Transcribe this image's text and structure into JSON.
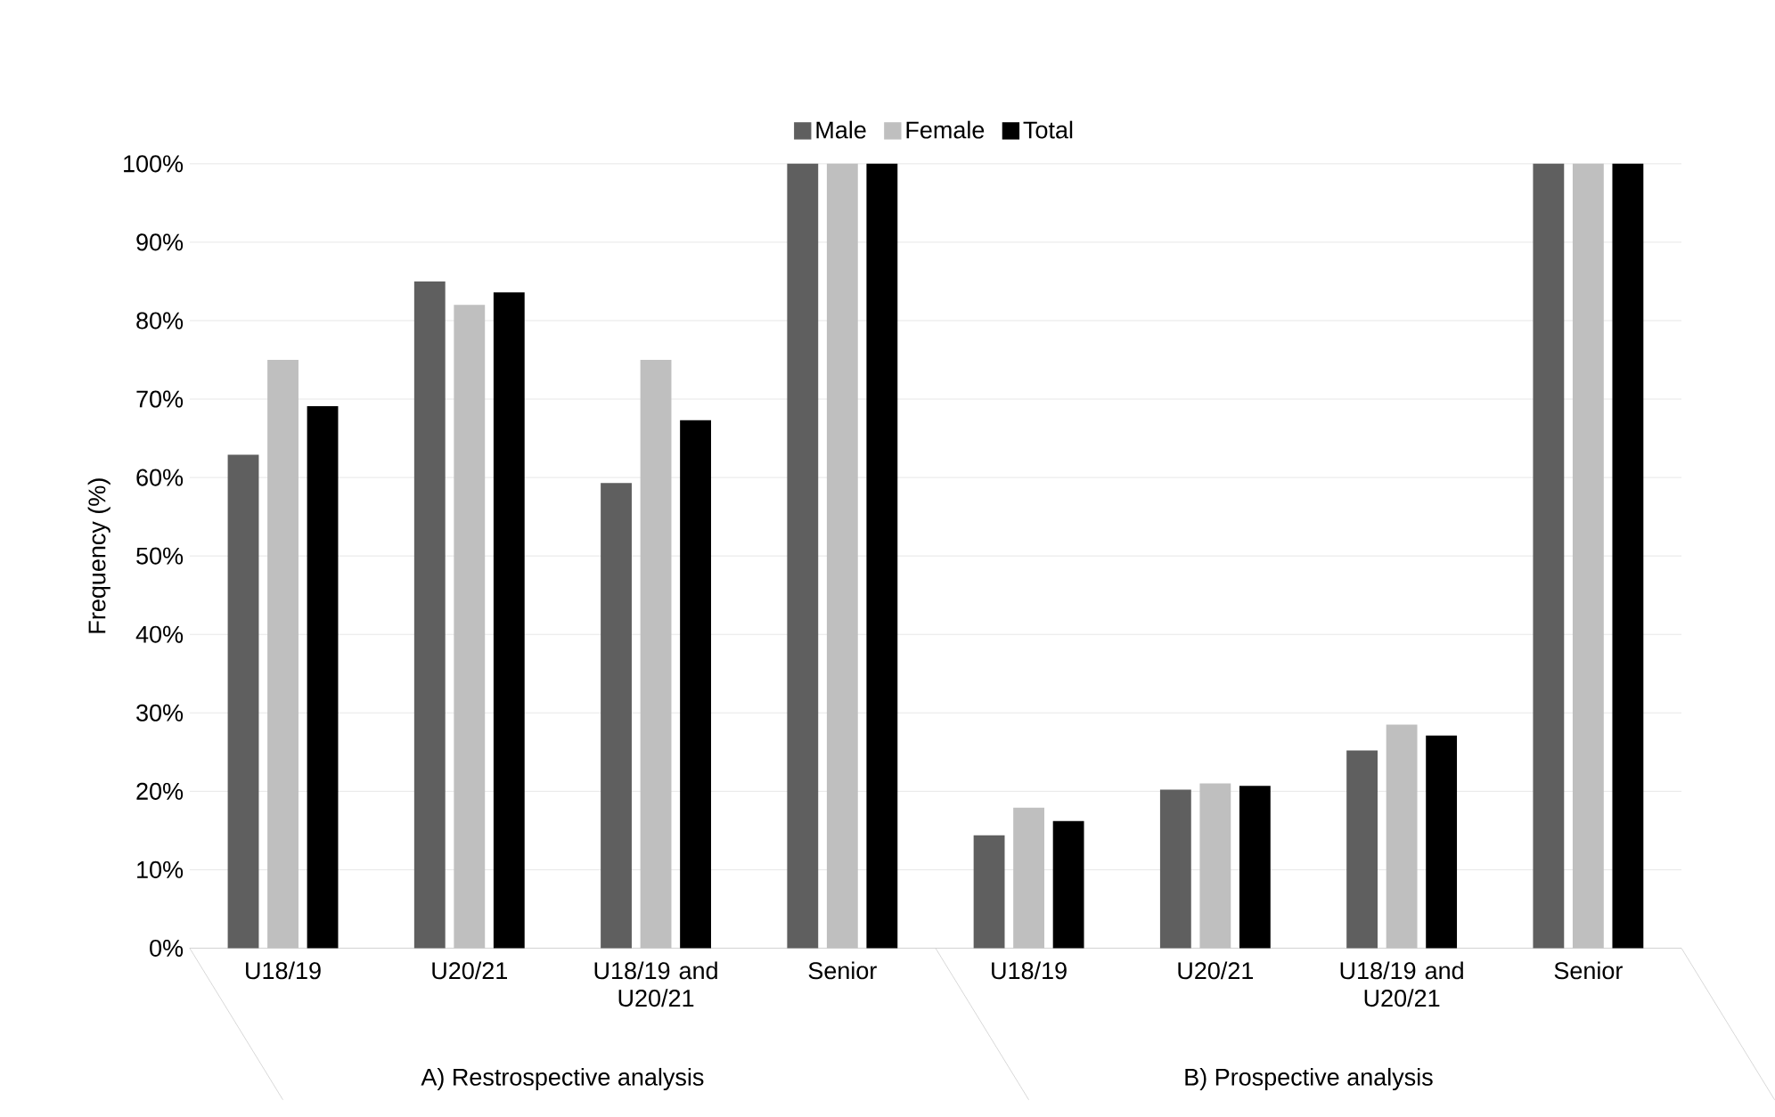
{
  "chart_data": {
    "type": "bar",
    "ylabel": "Frequency (%)",
    "categories": [
      "U18/19",
      "U20/21",
      "U18/19 and U20/21",
      "Senior",
      "U18/19",
      "U20/21",
      "U18/19 and U20/21",
      "Senior"
    ],
    "series": [
      {
        "name": "Male",
        "color": "#5f5f5f",
        "values": [
          62.9,
          85.0,
          59.3,
          100,
          14.4,
          20.2,
          25.2,
          100
        ]
      },
      {
        "name": "Female",
        "color": "#bfbfbf",
        "values": [
          75.0,
          82.0,
          75.0,
          100,
          17.9,
          21.0,
          28.5,
          100
        ]
      },
      {
        "name": "Total",
        "color": "#000000",
        "values": [
          69.1,
          83.6,
          67.3,
          100,
          16.2,
          20.7,
          27.1,
          100
        ]
      }
    ],
    "ylim": [
      0,
      100
    ],
    "yticks": [
      {
        "value": 0,
        "label": "0%"
      },
      {
        "value": 10,
        "label": "10%"
      },
      {
        "value": 20,
        "label": "20%"
      },
      {
        "value": 30,
        "label": "30%"
      },
      {
        "value": 40,
        "label": "40%"
      },
      {
        "value": 50,
        "label": "50%"
      },
      {
        "value": 60,
        "label": "60%"
      },
      {
        "value": 70,
        "label": "70%"
      },
      {
        "value": 80,
        "label": "80%"
      },
      {
        "value": 90,
        "label": "90%"
      },
      {
        "value": 100,
        "label": "100%"
      }
    ],
    "annotations": [
      "A) Restrospective analysis",
      "B) Prospective analysis"
    ],
    "grid": "y",
    "legend": "top"
  }
}
